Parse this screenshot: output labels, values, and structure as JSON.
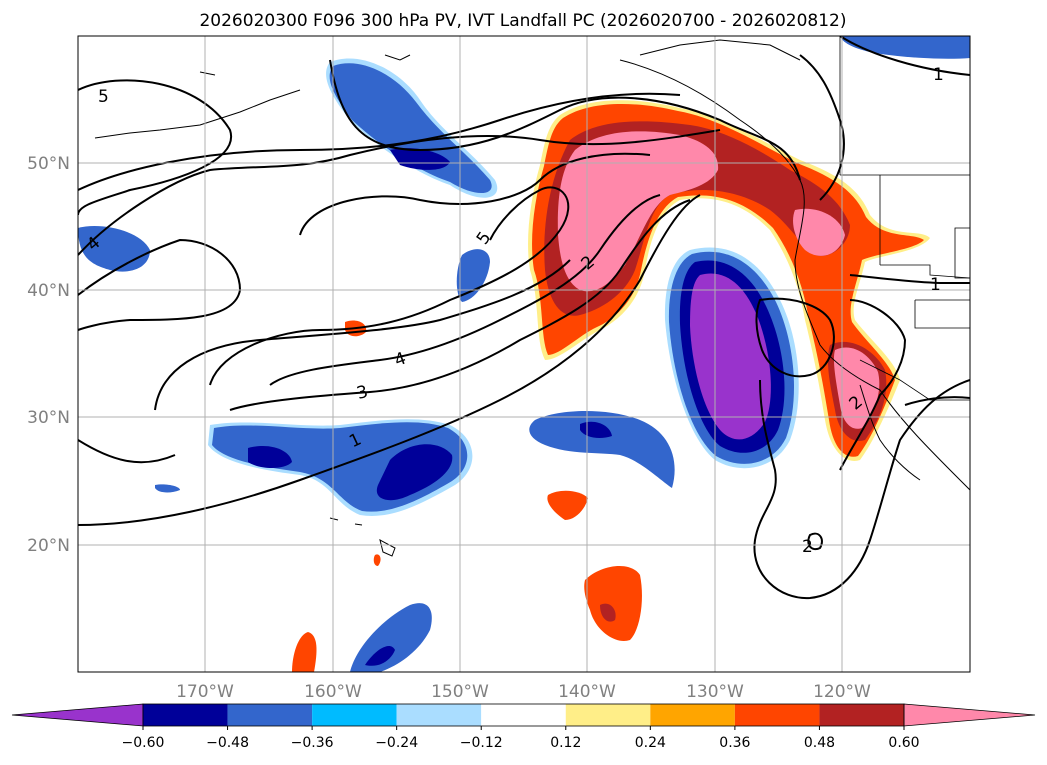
{
  "title": "2026020300 F096 300 hPa PV, IVT Landfall PC (2026020700 - 2026020812)",
  "map": {
    "lat_labels": [
      "50°N",
      "40°N",
      "30°N",
      "20°N"
    ],
    "lon_labels": [
      "170°W",
      "160°W",
      "150°W",
      "140°W",
      "130°W",
      "120°W"
    ],
    "contour_labels": [
      "5",
      "4",
      "5",
      "2",
      "4",
      "3",
      "1",
      "1",
      "1",
      "2",
      "2"
    ]
  },
  "colorbar": {
    "levels": [
      "−0.60",
      "−0.48",
      "−0.36",
      "−0.24",
      "−0.12",
      "0.12",
      "0.24",
      "0.36",
      "0.48",
      "0.60"
    ],
    "colors": [
      "#9933cc",
      "#000099",
      "#3366cc",
      "#00bbff",
      "#aaddff",
      "#ffffff",
      "#ffee88",
      "#ffa500",
      "#ff4500",
      "#b22222",
      "#ff88aa"
    ]
  }
}
